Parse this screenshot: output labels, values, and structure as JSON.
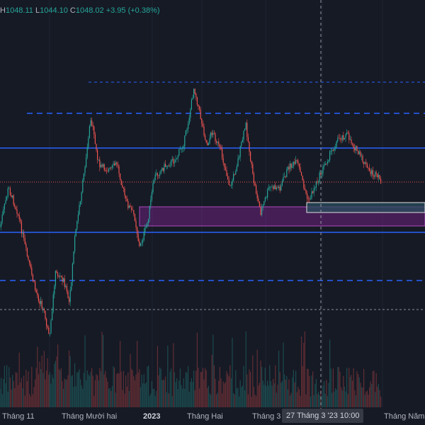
{
  "legend": {
    "h_key": "H",
    "h_val": "1048.11",
    "l_key": "L",
    "l_val": "1044.10",
    "c_key": "C",
    "c_val": "1048.02",
    "change": "+3.95 (+0.38%)"
  },
  "time_axis": {
    "labels": [
      "Tháng 11",
      "Tháng Mười hai",
      "2023",
      "Tháng Hai",
      "Tháng 3",
      "Tháng Năm"
    ],
    "crosshair_label": "27 Tháng 3 '23   10:00"
  },
  "colors": {
    "background": "#161a25",
    "up": "#26a69a",
    "down": "#ef5350",
    "level_line": "#2962ff",
    "zone": "#9c27b0"
  }
}
